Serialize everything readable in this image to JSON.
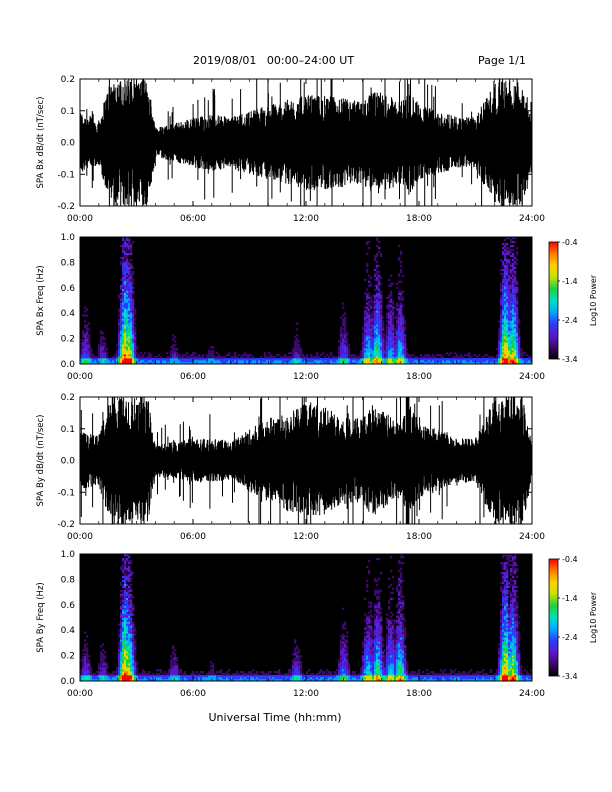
{
  "header": {
    "title": "2019/08/01   00:00–24:00 UT",
    "page": "Page 1/1"
  },
  "colors": {
    "waveform": "#000000",
    "spectrogram_background": "#000000",
    "colormap": [
      "#000000",
      "#3a0a66",
      "#5a18c8",
      "#2b3cff",
      "#00a8ff",
      "#00e0c0",
      "#20d040",
      "#c8e000",
      "#ffd000",
      "#ff7a00",
      "#ff0000"
    ]
  },
  "x_axis": {
    "ticks": [
      "00:00",
      "06:00",
      "12:00",
      "18:00",
      "24:00"
    ],
    "xlabel": "Universal Time (hh:mm)",
    "range_hours": [
      0,
      24
    ]
  },
  "chart_data": [
    {
      "type": "line",
      "ylabel": "SPA Bx dB/dt (nT/sec)",
      "ylim": [
        -0.2,
        0.2
      ],
      "y_ticks": [
        "0.2",
        "0.1",
        "0.0",
        "-0.1",
        "-0.2"
      ],
      "x": [
        0,
        1,
        1.6,
        2,
        2.5,
        3,
        3.6,
        4,
        5,
        6,
        7,
        8,
        9,
        10,
        11,
        12,
        13,
        14,
        15,
        15.5,
        16,
        17,
        17.5,
        18,
        19,
        20,
        21,
        22,
        22.5,
        23,
        23.5,
        24
      ],
      "amplitude": [
        0.1,
        0.07,
        0.2,
        0.2,
        0.2,
        0.2,
        0.2,
        0.05,
        0.06,
        0.08,
        0.09,
        0.08,
        0.1,
        0.12,
        0.13,
        0.15,
        0.15,
        0.14,
        0.13,
        0.16,
        0.16,
        0.13,
        0.16,
        0.12,
        0.1,
        0.08,
        0.08,
        0.2,
        0.2,
        0.2,
        0.2,
        0.06
      ]
    },
    {
      "type": "heatmap",
      "ylabel": "SPA Bx Freq (Hz)",
      "ylim": [
        0.0,
        1.0
      ],
      "y_ticks": [
        "1.0",
        "0.8",
        "0.6",
        "0.4",
        "0.2",
        "0.0"
      ],
      "colorbar": {
        "label": "Log10 Power",
        "range": [
          -3.4,
          -0.4
        ],
        "ticks": [
          "-0.4",
          "-1.4",
          "-2.4",
          "-3.4"
        ]
      },
      "activity_hours": [
        0.3,
        1.2,
        2.4,
        2.6,
        5.0,
        7.0,
        11.5,
        14.0,
        15.3,
        15.8,
        16.5,
        17.0,
        22.6,
        23.0
      ],
      "activity_strength": [
        0.4,
        0.3,
        1.0,
        0.9,
        0.25,
        0.2,
        0.3,
        0.4,
        0.6,
        0.75,
        0.55,
        0.6,
        0.95,
        0.85
      ]
    },
    {
      "type": "line",
      "ylabel": "SPA By dB/dt (nT/sec)",
      "ylim": [
        -0.2,
        0.2
      ],
      "y_ticks": [
        "0.2",
        "0.1",
        "0.0",
        "-0.1",
        "-0.2"
      ],
      "x": [
        0,
        1,
        1.6,
        2,
        2.5,
        3,
        3.6,
        4,
        5,
        6,
        7,
        8,
        9,
        10,
        11,
        12,
        13,
        14,
        15,
        15.5,
        16,
        17,
        17.5,
        18,
        19,
        20,
        21,
        22,
        22.5,
        23,
        23.5,
        24
      ],
      "amplitude": [
        0.09,
        0.08,
        0.2,
        0.2,
        0.2,
        0.2,
        0.2,
        0.05,
        0.06,
        0.07,
        0.07,
        0.06,
        0.1,
        0.13,
        0.16,
        0.18,
        0.17,
        0.14,
        0.13,
        0.18,
        0.16,
        0.12,
        0.18,
        0.12,
        0.1,
        0.07,
        0.07,
        0.2,
        0.2,
        0.2,
        0.2,
        0.06
      ]
    },
    {
      "type": "heatmap",
      "ylabel": "SPA By Freq (Hz)",
      "ylim": [
        0.0,
        1.0
      ],
      "y_ticks": [
        "1.0",
        "0.8",
        "0.6",
        "0.4",
        "0.2",
        "0.0"
      ],
      "colorbar": {
        "label": "Log10 Power",
        "range": [
          -3.4,
          -0.4
        ],
        "ticks": [
          "-0.4",
          "-1.4",
          "-2.4",
          "-3.4"
        ]
      },
      "activity_hours": [
        0.3,
        1.2,
        2.4,
        2.6,
        5.0,
        7.0,
        11.5,
        14.0,
        15.3,
        15.8,
        16.5,
        17.0,
        22.6,
        23.0
      ],
      "activity_strength": [
        0.35,
        0.3,
        1.0,
        0.85,
        0.3,
        0.2,
        0.35,
        0.45,
        0.6,
        0.7,
        0.6,
        0.7,
        0.95,
        0.85
      ]
    }
  ]
}
